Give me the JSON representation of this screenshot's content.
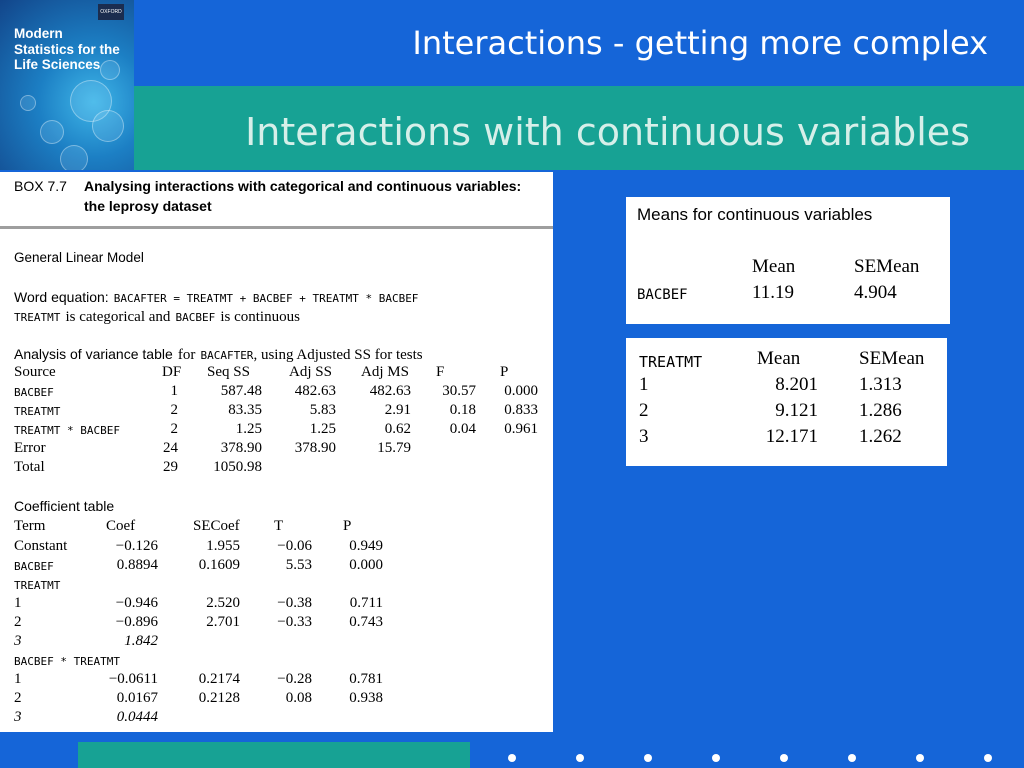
{
  "cover": {
    "title_lines": [
      "Modern",
      "Statistics for the",
      "Life Sciences"
    ],
    "publisher": "OXFORD"
  },
  "slide": {
    "title": "Interactions - getting more complex",
    "subtitle": "Interactions with continuous variables"
  },
  "box": {
    "number": "BOX 7.7",
    "heading_line1": "Analysing interactions with categorical and continuous variables:",
    "heading_line2": "the leprosy dataset",
    "glm_title": "General Linear Model",
    "word_equation_label": "Word equation:",
    "word_equation": "BACAFTER = TREATMT + BACBEF + TREATMT * BACBEF",
    "equation_note_var1": "TREATMT",
    "equation_note_text1": "is categorical and",
    "equation_note_var2": "BACBEF",
    "equation_note_text2": "is continuous",
    "anova_title_start": "Analysis of variance table",
    "anova_title_for": "for",
    "anova_title_var": "BACAFTER",
    "anova_title_end": ", using Adjusted SS for tests",
    "anova_headers": [
      "Source",
      "DF",
      "Seq SS",
      "Adj SS",
      "Adj MS",
      "F",
      "P"
    ],
    "anova_rows": [
      [
        "BACBEF",
        "1",
        "587.48",
        "482.63",
        "482.63",
        "30.57",
        "0.000"
      ],
      [
        "TREATMT",
        "2",
        "83.35",
        "5.83",
        "2.91",
        "0.18",
        "0.833"
      ],
      [
        "TREATMT * BACBEF",
        "2",
        "1.25",
        "1.25",
        "0.62",
        "0.04",
        "0.961"
      ],
      [
        "Error",
        "24",
        "378.90",
        "378.90",
        "15.79",
        "",
        ""
      ],
      [
        "Total",
        "29",
        "1050.98",
        "",
        "",
        "",
        ""
      ]
    ],
    "coef_title": "Coefficient table",
    "coef_headers": [
      "Term",
      "Coef",
      "SECoef",
      "T",
      "P"
    ],
    "coef_rows": [
      [
        "Constant",
        "−0.126",
        "1.955",
        "−0.06",
        "0.949"
      ],
      [
        "BACBEF",
        "0.8894",
        "0.1609",
        "5.53",
        "0.000"
      ],
      [
        "TREATMT",
        "",
        "",
        "",
        ""
      ],
      [
        "1",
        "−0.946",
        "2.520",
        "−0.38",
        "0.711"
      ],
      [
        "2",
        "−0.896",
        "2.701",
        "−0.33",
        "0.743"
      ],
      [
        "3",
        "1.842",
        "",
        "",
        ""
      ],
      [
        "BACBEF * TREATMT",
        "",
        "",
        "",
        ""
      ],
      [
        "1",
        "−0.0611",
        "0.2174",
        "−0.28",
        "0.781"
      ],
      [
        "2",
        "0.0167",
        "0.2128",
        "0.08",
        "0.938"
      ],
      [
        "3",
        "0.0444",
        "",
        "",
        ""
      ]
    ]
  },
  "means_continuous": {
    "title": "Means for continuous variables",
    "headers": [
      "Mean",
      "SEMean"
    ],
    "row_label": "BACBEF",
    "mean": "11.19",
    "se_mean": "4.904"
  },
  "means_treatment": {
    "label": "TREATMT",
    "headers": [
      "Mean",
      "SEMean"
    ],
    "rows": [
      [
        "1",
        "8.201",
        "1.313"
      ],
      [
        "2",
        "9.121",
        "1.286"
      ],
      [
        "3",
        "12.171",
        "1.262"
      ]
    ]
  },
  "colors": {
    "background": "#1565d8",
    "teal": "#17a294"
  }
}
